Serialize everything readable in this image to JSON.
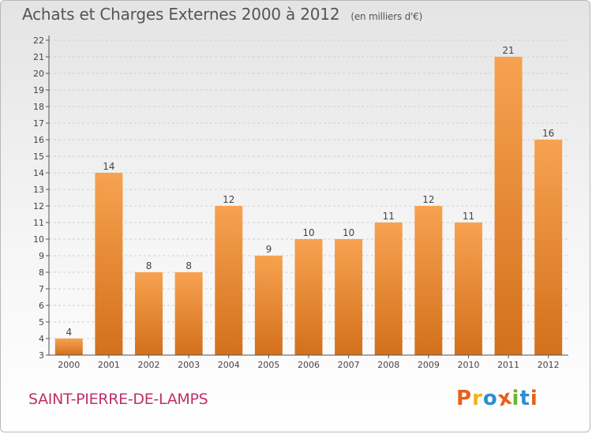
{
  "header": {
    "title": "Achats et Charges Externes 2000 à 2012",
    "unit": "(en milliers d'€)"
  },
  "footer": {
    "commune": "SAINT-PIERRE-DE-LAMPS",
    "logo_letters": [
      "P",
      "r",
      "o",
      "x",
      "i",
      "t",
      "i"
    ]
  },
  "colors": {
    "bar_light": "#f7a250",
    "bar_dark": "#d3701c",
    "logo": [
      "#e8601a",
      "#f0b418",
      "#2b8fd0",
      "#e8601a",
      "#6cb52d",
      "#2b8fd0",
      "#e8601a"
    ]
  },
  "chart_data": {
    "type": "bar",
    "categories": [
      "2000",
      "2001",
      "2002",
      "2003",
      "2004",
      "2005",
      "2006",
      "2007",
      "2008",
      "2009",
      "2010",
      "2011",
      "2012"
    ],
    "values": [
      4,
      14,
      8,
      8,
      12,
      9,
      10,
      10,
      11,
      12,
      11,
      21,
      16
    ],
    "ylim": [
      3,
      22
    ],
    "yticks": [
      3,
      4,
      5,
      6,
      7,
      8,
      9,
      10,
      11,
      12,
      13,
      14,
      15,
      16,
      17,
      18,
      19,
      20,
      21,
      22
    ],
    "grid": true,
    "data_labels": true
  }
}
